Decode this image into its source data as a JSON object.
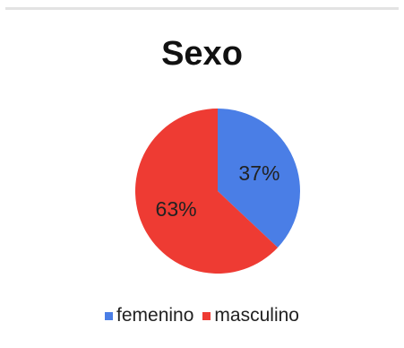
{
  "chart_data": {
    "type": "pie",
    "title": "Sexo",
    "categories": [
      "femenino",
      "masculino"
    ],
    "values": [
      37,
      63
    ],
    "value_labels": [
      "37%",
      "63%"
    ],
    "colors": [
      "#4a7ee6",
      "#ee3b33"
    ],
    "legend_placement": "bottom"
  }
}
